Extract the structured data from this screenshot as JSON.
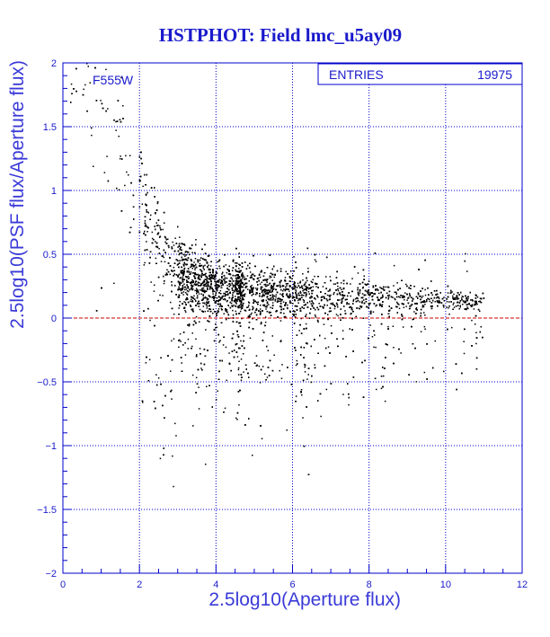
{
  "colors": {
    "frame": "#0000cc",
    "grid": "#0000cc",
    "reference_line": "#cc0000",
    "points": "#000000",
    "text": "#1a1acc"
  },
  "chart_data": {
    "type": "scatter",
    "title": "HSTPHOT: Field lmc_u5ay09",
    "xlabel": "2.5log10(Aperture flux)",
    "ylabel": "2.5log10(PSF flux/Aperture flux)",
    "filter_label": "F555W",
    "stats": {
      "label": "ENTRIES",
      "value": "19975"
    },
    "entries": 19975,
    "xlim": [
      0,
      12
    ],
    "ylim": [
      -2,
      2
    ],
    "xticks": [
      0,
      2,
      4,
      6,
      8,
      10,
      12
    ],
    "yticks": [
      -2,
      -1.5,
      -1,
      -0.5,
      0,
      0.5,
      1,
      1.5,
      2
    ],
    "xtick_labels": [
      "0",
      "2",
      "4",
      "6",
      "8",
      "10",
      "12"
    ],
    "ytick_labels": [
      "−2",
      "−1.5",
      "−1",
      "−0.5",
      "0",
      "0.5",
      "1",
      "1.5",
      "2"
    ],
    "grid": true,
    "reference_line": {
      "y": 0,
      "style": "dashed"
    },
    "locus": {
      "x": [
        0.3,
        1.0,
        1.5,
        2.0,
        2.5,
        3.0,
        3.5,
        4.0,
        5.0,
        6.0,
        7.0,
        8.0,
        9.0,
        10.0,
        10.5,
        11.0
      ],
      "y_median": [
        1.9,
        1.65,
        1.4,
        1.05,
        0.6,
        0.38,
        0.28,
        0.24,
        0.21,
        0.19,
        0.18,
        0.16,
        0.15,
        0.14,
        0.13,
        0.13
      ]
    }
  }
}
